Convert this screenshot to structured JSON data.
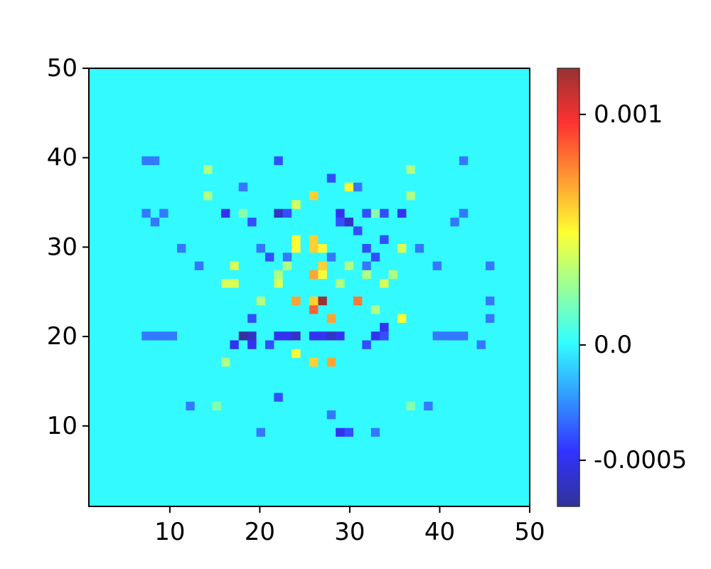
{
  "chart_data": {
    "type": "heatmap",
    "title": "",
    "xlabel": "",
    "ylabel": "",
    "grid": "off",
    "xlim": [
      1,
      50
    ],
    "ylim": [
      1,
      50
    ],
    "x_ticks": [
      10,
      20,
      30,
      40,
      50
    ],
    "y_ticks": [
      10,
      20,
      30,
      40,
      50
    ],
    "x_tick_labels": [
      "10",
      "20",
      "30",
      "40",
      "50"
    ],
    "y_tick_labels": [
      "10",
      "20",
      "30",
      "40",
      "50"
    ],
    "grid_size": [
      50,
      50
    ],
    "background_value": 0.0,
    "colormap": "jet",
    "colorbar": {
      "vmin": -0.0007,
      "vmax": 0.0012,
      "ticks": [
        -0.0005,
        0.0,
        0.001
      ],
      "tick_labels": [
        "-0.0005",
        "0.0",
        "0.001"
      ],
      "placement": "right"
    },
    "cells": [
      [
        26.5,
        24.5,
        0.0012
      ],
      [
        25.5,
        23.5,
        0.00085
      ],
      [
        24.5,
        24.5,
        0.0007
      ],
      [
        25.5,
        24.5,
        0.0006
      ],
      [
        27.5,
        22.5,
        0.0007
      ],
      [
        25.5,
        26.5,
        0.0007
      ],
      [
        26.5,
        27.5,
        0.0006
      ],
      [
        26.5,
        26.5,
        0.0005
      ],
      [
        25.5,
        29.5,
        0.0006
      ],
      [
        24.5,
        29.5,
        0.0005
      ],
      [
        25.5,
        30.5,
        0.0006
      ],
      [
        24.5,
        30.5,
        0.0005
      ],
      [
        26.5,
        29.5,
        0.0005
      ],
      [
        30.5,
        24.5,
        0.0008
      ],
      [
        25.5,
        35.5,
        0.0006
      ],
      [
        24.5,
        34.5,
        0.0004
      ],
      [
        29.5,
        36.5,
        0.0005
      ],
      [
        25.5,
        17.5,
        0.0006
      ],
      [
        27.5,
        17.5,
        0.0007
      ],
      [
        24.5,
        18.5,
        0.0005
      ],
      [
        35.5,
        22.5,
        0.0005
      ],
      [
        33.5,
        25.5,
        0.0004
      ],
      [
        34.5,
        26.5,
        0.0003
      ],
      [
        35.5,
        29.5,
        0.0004
      ],
      [
        16.5,
        25.5,
        0.0004
      ],
      [
        17.5,
        25.5,
        0.0004
      ],
      [
        17.5,
        27.5,
        0.0004
      ],
      [
        16.5,
        17.5,
        0.0003
      ],
      [
        22.5,
        25.5,
        0.0004
      ],
      [
        22.5,
        26.5,
        0.0003
      ],
      [
        23.5,
        27.5,
        0.0003
      ],
      [
        20.5,
        24.5,
        0.0003
      ],
      [
        31.5,
        26.5,
        0.0003
      ],
      [
        32.5,
        23.5,
        0.0003
      ],
      [
        28.5,
        25.5,
        0.0003
      ],
      [
        29.5,
        27.5,
        0.0003
      ],
      [
        14.5,
        38.5,
        0.0003
      ],
      [
        14.5,
        35.5,
        0.0003
      ],
      [
        36.5,
        38.5,
        0.0003
      ],
      [
        36.5,
        35.5,
        0.0003
      ],
      [
        15.5,
        12.5,
        0.0002
      ],
      [
        36.5,
        12.5,
        0.0002
      ],
      [
        18.5,
        33.5,
        0.0002
      ],
      [
        32.5,
        33.5,
        0.0002
      ],
      [
        18.5,
        20.5,
        -0.0007
      ],
      [
        19.5,
        20.5,
        -0.0006
      ],
      [
        17.5,
        19.5,
        -0.0005
      ],
      [
        19.5,
        19.5,
        -0.0005
      ],
      [
        22.5,
        20.5,
        -0.0005
      ],
      [
        23.5,
        20.5,
        -0.0005
      ],
      [
        24.5,
        20.5,
        -0.0006
      ],
      [
        25.5,
        20.5,
        -0.0005
      ],
      [
        26.5,
        20.5,
        -0.0005
      ],
      [
        27.5,
        20.5,
        -0.0006
      ],
      [
        28.5,
        20.5,
        -0.0005
      ],
      [
        32.5,
        20.5,
        -0.0005
      ],
      [
        33.5,
        20.5,
        -0.0004
      ],
      [
        33.5,
        21.5,
        -0.0005
      ],
      [
        21.5,
        19.5,
        -0.0004
      ],
      [
        31.5,
        19.5,
        -0.0004
      ],
      [
        22.5,
        33.5,
        -0.0006
      ],
      [
        23.5,
        33.5,
        -0.0004
      ],
      [
        28.5,
        33.5,
        -0.0005
      ],
      [
        29.5,
        32.5,
        -0.0006
      ],
      [
        28.5,
        32.5,
        -0.0004
      ],
      [
        16.5,
        33.5,
        -0.0005
      ],
      [
        19.5,
        32.5,
        -0.0004
      ],
      [
        35.5,
        33.5,
        -0.0005
      ],
      [
        31.5,
        33.5,
        -0.0004
      ],
      [
        33.5,
        33.5,
        -0.0004
      ],
      [
        28.5,
        9.5,
        -0.0005
      ],
      [
        29.5,
        9.5,
        -0.0004
      ],
      [
        22.5,
        13.5,
        -0.0004
      ],
      [
        27.5,
        11.5,
        -0.0003
      ],
      [
        31.5,
        29.5,
        -0.0004
      ],
      [
        32.5,
        28.5,
        -0.0004
      ],
      [
        33.5,
        30.5,
        -0.0004
      ],
      [
        31.5,
        27.5,
        -0.0003
      ],
      [
        30.5,
        31.5,
        -0.0004
      ],
      [
        20.5,
        29.5,
        -0.0003
      ],
      [
        21.5,
        28.5,
        -0.0004
      ],
      [
        19.5,
        22.5,
        -0.0004
      ],
      [
        23.5,
        28.5,
        -0.0003
      ],
      [
        27.5,
        28.5,
        -0.0003
      ],
      [
        18.5,
        36.5,
        -0.0003
      ],
      [
        22.5,
        39.5,
        -0.0004
      ],
      [
        27.5,
        37.5,
        -0.0004
      ],
      [
        30.5,
        36.5,
        -0.0003
      ],
      [
        7.5,
        39.5,
        -0.0003
      ],
      [
        8.5,
        39.5,
        -0.0003
      ],
      [
        42.5,
        39.5,
        -0.0003
      ],
      [
        7.5,
        20.5,
        -0.0003
      ],
      [
        8.5,
        20.5,
        -0.0003
      ],
      [
        9.5,
        20.5,
        -0.0003
      ],
      [
        10.5,
        20.5,
        -0.0003
      ],
      [
        39.5,
        20.5,
        -0.0003
      ],
      [
        40.5,
        20.5,
        -0.0003
      ],
      [
        41.5,
        20.5,
        -0.0003
      ],
      [
        42.5,
        20.5,
        -0.0003
      ],
      [
        44.5,
        19.5,
        -0.0003
      ],
      [
        45.5,
        22.5,
        -0.0003
      ],
      [
        45.5,
        24.5,
        -0.0003
      ],
      [
        45.5,
        27.5,
        -0.0003
      ],
      [
        7.5,
        33.5,
        -0.0003
      ],
      [
        8.5,
        32.5,
        -0.0003
      ],
      [
        9.5,
        33.5,
        -0.0003
      ],
      [
        42.5,
        33.5,
        -0.0003
      ],
      [
        41.5,
        32.5,
        -0.0003
      ],
      [
        13.5,
        27.5,
        -0.0003
      ],
      [
        11.5,
        29.5,
        -0.0003
      ],
      [
        37.5,
        29.5,
        -0.0003
      ],
      [
        39.5,
        27.5,
        -0.0003
      ],
      [
        20.5,
        9.5,
        -0.0003
      ],
      [
        32.5,
        9.5,
        -0.0003
      ],
      [
        12.5,
        12.5,
        -0.0003
      ],
      [
        38.5,
        12.5,
        -0.0003
      ]
    ]
  }
}
